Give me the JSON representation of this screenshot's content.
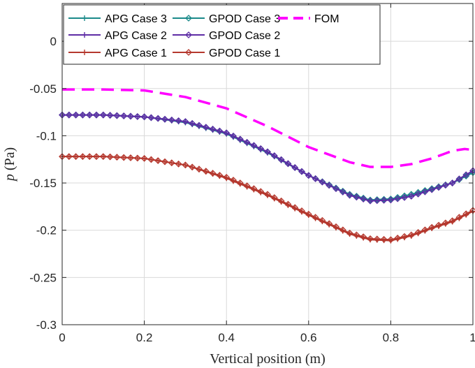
{
  "chart_data": {
    "type": "line",
    "title": "",
    "xlabel": "Vertical position (m)",
    "ylabel_var": "p",
    "ylabel_unit": "(Pa)",
    "xlim": [
      0,
      1
    ],
    "ylim": [
      -0.3,
      0.04
    ],
    "grid": true,
    "legend_position": "top-left",
    "xticks": [
      0,
      0.2,
      0.4,
      0.6,
      0.8,
      1
    ],
    "xtick_labels": [
      "0",
      "0.2",
      "0.4",
      "0.6",
      "0.8",
      "1"
    ],
    "yticks": [
      0,
      -0.05,
      -0.1,
      -0.15,
      -0.2,
      -0.25,
      -0.3
    ],
    "ytick_labels": [
      "0",
      "-0.05",
      "-0.1",
      "-0.15",
      "-0.2",
      "-0.25",
      "-0.3"
    ],
    "series": [
      {
        "name": "APG Case 3",
        "color": "#1b8a8a",
        "marker": "plus",
        "x": [
          0,
          0.1,
          0.2,
          0.3,
          0.4,
          0.5,
          0.6,
          0.7,
          0.75,
          0.8,
          0.85,
          0.9,
          0.95,
          1.0
        ],
        "y": [
          -0.078,
          -0.078,
          -0.08,
          -0.086,
          -0.098,
          -0.118,
          -0.142,
          -0.162,
          -0.168,
          -0.167,
          -0.162,
          -0.156,
          -0.15,
          -0.139
        ]
      },
      {
        "name": "APG Case 2",
        "color": "#5e2ca5",
        "marker": "plus",
        "x": [
          0,
          0.1,
          0.2,
          0.3,
          0.4,
          0.5,
          0.6,
          0.7,
          0.75,
          0.8,
          0.85,
          0.9,
          0.95,
          1.0
        ],
        "y": [
          -0.078,
          -0.078,
          -0.08,
          -0.085,
          -0.097,
          -0.117,
          -0.142,
          -0.163,
          -0.169,
          -0.168,
          -0.164,
          -0.157,
          -0.15,
          -0.137
        ]
      },
      {
        "name": "APG Case 1",
        "color": "#b5382e",
        "marker": "plus",
        "x": [
          0,
          0.1,
          0.2,
          0.3,
          0.4,
          0.5,
          0.6,
          0.7,
          0.75,
          0.8,
          0.85,
          0.9,
          0.95,
          1.0
        ],
        "y": [
          -0.122,
          -0.122,
          -0.124,
          -0.131,
          -0.145,
          -0.163,
          -0.184,
          -0.204,
          -0.21,
          -0.211,
          -0.206,
          -0.198,
          -0.191,
          -0.18
        ]
      },
      {
        "name": "GPOD Case 3",
        "color": "#1b8a8a",
        "marker": "diamond",
        "x": [
          0,
          0.1,
          0.2,
          0.3,
          0.4,
          0.5,
          0.6,
          0.7,
          0.75,
          0.8,
          0.85,
          0.9,
          0.95,
          1.0
        ],
        "y": [
          -0.078,
          -0.078,
          -0.08,
          -0.085,
          -0.097,
          -0.117,
          -0.142,
          -0.162,
          -0.168,
          -0.167,
          -0.162,
          -0.156,
          -0.15,
          -0.139
        ]
      },
      {
        "name": "GPOD Case 2",
        "color": "#5e2ca5",
        "marker": "diamond",
        "x": [
          0,
          0.1,
          0.2,
          0.3,
          0.4,
          0.5,
          0.6,
          0.7,
          0.75,
          0.8,
          0.85,
          0.9,
          0.95,
          1.0
        ],
        "y": [
          -0.078,
          -0.078,
          -0.08,
          -0.085,
          -0.097,
          -0.117,
          -0.142,
          -0.163,
          -0.169,
          -0.168,
          -0.164,
          -0.157,
          -0.15,
          -0.137
        ]
      },
      {
        "name": "GPOD Case 1",
        "color": "#b5382e",
        "marker": "diamond",
        "x": [
          0,
          0.1,
          0.2,
          0.3,
          0.4,
          0.5,
          0.6,
          0.7,
          0.75,
          0.8,
          0.85,
          0.9,
          0.95,
          1.0
        ],
        "y": [
          -0.122,
          -0.122,
          -0.124,
          -0.131,
          -0.144,
          -0.162,
          -0.183,
          -0.203,
          -0.209,
          -0.21,
          -0.205,
          -0.197,
          -0.19,
          -0.179
        ]
      },
      {
        "name": "FOM",
        "color": "#ff00ff",
        "marker": "none",
        "dashed": true,
        "x": [
          0,
          0.1,
          0.2,
          0.3,
          0.4,
          0.5,
          0.6,
          0.7,
          0.75,
          0.8,
          0.85,
          0.9,
          0.95,
          0.98,
          1.0
        ],
        "y": [
          -0.051,
          -0.051,
          -0.052,
          -0.059,
          -0.071,
          -0.09,
          -0.112,
          -0.128,
          -0.133,
          -0.133,
          -0.13,
          -0.124,
          -0.116,
          -0.114,
          -0.115
        ]
      }
    ]
  }
}
